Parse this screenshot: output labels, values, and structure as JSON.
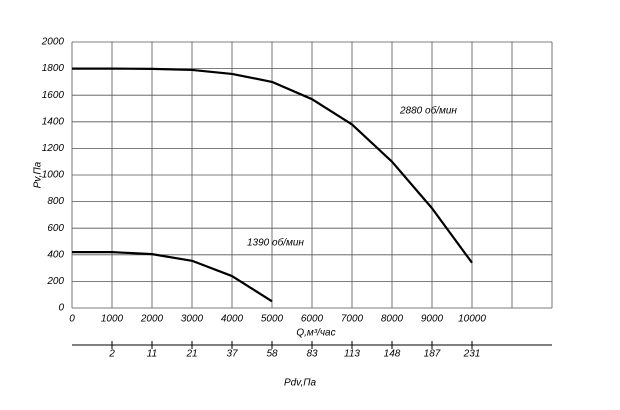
{
  "chart_data": {
    "type": "line",
    "xlabel": "Q,м³/час",
    "ylabel": "Pv,Па",
    "x2label": "Pdv,Па",
    "x": [
      0,
      1000,
      2000,
      3000,
      4000,
      5000,
      6000,
      7000,
      8000,
      9000,
      10000
    ],
    "series": [
      {
        "name": "2880 об/мин",
        "color": "#000000",
        "values": [
          1800,
          1800,
          1798,
          1790,
          1760,
          1700,
          1570,
          1380,
          1100,
          750,
          340
        ]
      },
      {
        "name": "1390 об/мин",
        "color": "#000000",
        "values": [
          420,
          420,
          405,
          355,
          240,
          50,
          null,
          null,
          null,
          null,
          null
        ]
      }
    ],
    "xlim": [
      0,
      12000
    ],
    "ylim": [
      0,
      2000
    ],
    "xticks": [
      0,
      1000,
      2000,
      3000,
      4000,
      5000,
      6000,
      7000,
      8000,
      9000,
      10000
    ],
    "xgrid": [
      0,
      1000,
      2000,
      3000,
      4000,
      5000,
      6000,
      7000,
      8000,
      9000,
      10000,
      11000,
      12000
    ],
    "yticks": [
      0,
      200,
      400,
      600,
      800,
      1000,
      1200,
      1400,
      1600,
      1800,
      2000
    ],
    "x2ticks": [
      {
        "value": 1000,
        "label": "2"
      },
      {
        "value": 2000,
        "label": "11"
      },
      {
        "value": 3000,
        "label": "21"
      },
      {
        "value": 4000,
        "label": "37"
      },
      {
        "value": 5000,
        "label": "58"
      },
      {
        "value": 6000,
        "label": "83"
      },
      {
        "value": 7000,
        "label": "113"
      },
      {
        "value": 8000,
        "label": "148"
      },
      {
        "value": 9000,
        "label": "187"
      },
      {
        "value": 10000,
        "label": "231"
      }
    ],
    "grid": true
  }
}
